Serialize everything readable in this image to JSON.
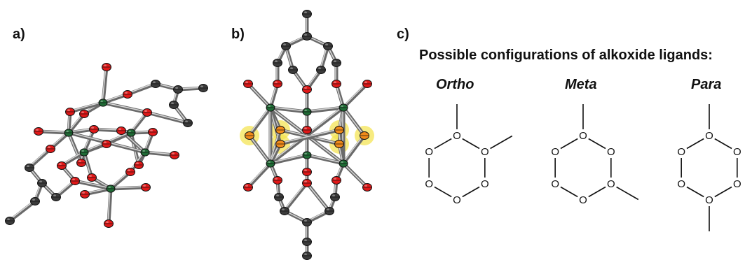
{
  "panels": {
    "a_label": "a)",
    "b_label": "b)",
    "c_label": "c)"
  },
  "panel_c": {
    "title": "Possible configurations of alkoxide ligands:",
    "configurations": [
      {
        "name": "Ortho"
      },
      {
        "name": "Meta"
      },
      {
        "name": "Para"
      }
    ],
    "ring_atom_label": "O"
  },
  "colors": {
    "oxygen": "#e01818",
    "metal": "#1f6b35",
    "carbon": "#3b3b3b",
    "highlight": "#f3e24a",
    "bond": "#6a6a6a"
  }
}
